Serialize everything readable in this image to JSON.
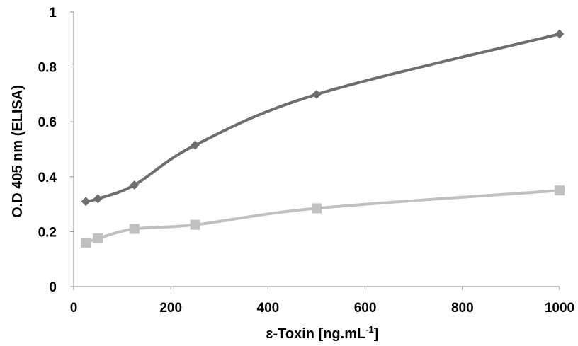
{
  "chart_data": {
    "type": "line",
    "title": "",
    "xlabel": {
      "prefix": "ɛ-Toxin [ng.mL",
      "superscript": "-1",
      "suffix": "]"
    },
    "ylabel": "O.D 405 nm (ELISA)",
    "xlim": [
      0,
      1000
    ],
    "ylim": [
      0,
      1
    ],
    "xticks": [
      0,
      200,
      400,
      600,
      800,
      1000
    ],
    "yticks": [
      0,
      0.2,
      0.4,
      0.6,
      0.8,
      1
    ],
    "ytick_labels": [
      "0",
      "0.2",
      "0.4",
      "0.6",
      "0.8",
      "1"
    ],
    "grid": false,
    "legend": "none",
    "series": [
      {
        "marker": "diamond",
        "color": "#6d6d6d",
        "x": [
          25,
          50,
          125,
          250,
          500,
          1000
        ],
        "values": [
          0.31,
          0.32,
          0.37,
          0.515,
          0.7,
          0.92
        ]
      },
      {
        "marker": "square",
        "color": "#c0c0c0",
        "x": [
          25,
          50,
          125,
          250,
          500,
          1000
        ],
        "values": [
          0.16,
          0.175,
          0.21,
          0.225,
          0.285,
          0.35
        ]
      }
    ]
  }
}
